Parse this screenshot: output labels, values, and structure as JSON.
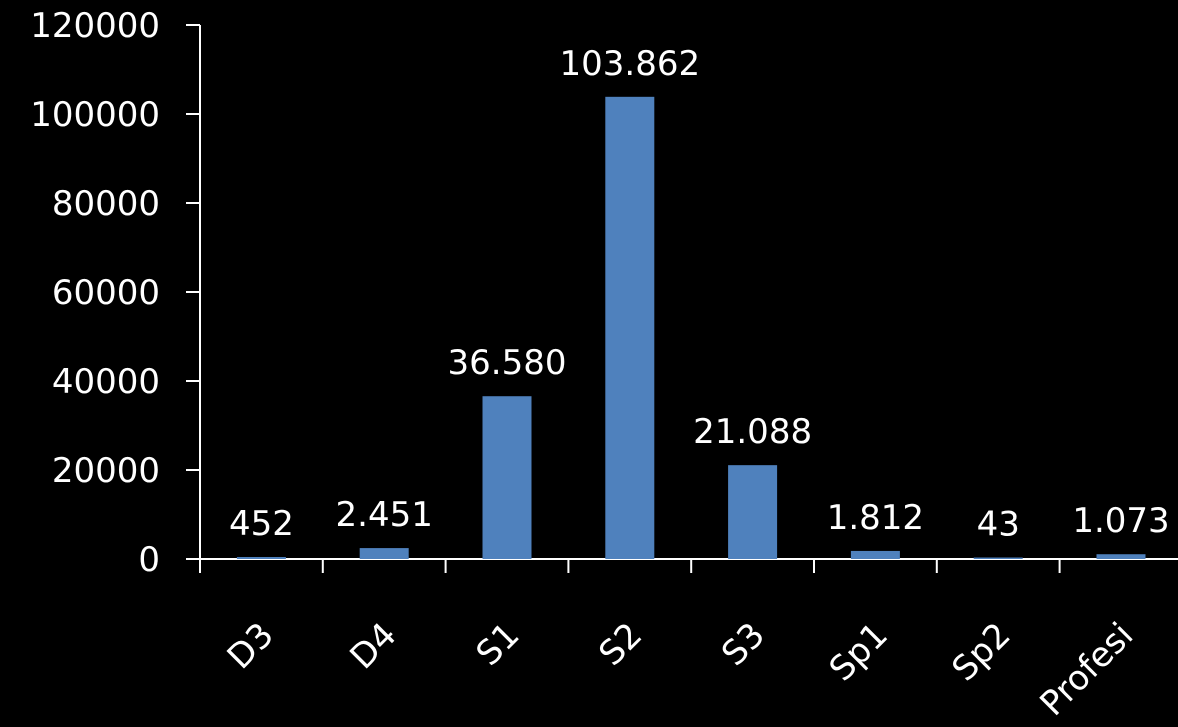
{
  "chart_data": {
    "type": "bar",
    "categories": [
      "D3",
      "D4",
      "S1",
      "S2",
      "S3",
      "Sp1",
      "Sp2",
      "Profesi"
    ],
    "values": [
      452,
      2451,
      36580,
      103862,
      21088,
      1812,
      43,
      1073
    ],
    "data_labels": [
      "452",
      "2.451",
      "36.580",
      "103.862",
      "21.088",
      "1.812",
      "43",
      "1.073"
    ],
    "y_ticks": [
      "0",
      "20000",
      "40000",
      "60000",
      "80000",
      "100000",
      "120000"
    ],
    "y_tick_values": [
      0,
      20000,
      40000,
      60000,
      80000,
      100000,
      120000
    ],
    "ylim": [
      0,
      120000
    ],
    "title": "",
    "xlabel": "",
    "ylabel": "",
    "grid": false,
    "legend": "none",
    "colors": {
      "background": "#000000",
      "bar": "#4f81bd",
      "axis": "#ffffff",
      "text": "#ffffff"
    }
  }
}
